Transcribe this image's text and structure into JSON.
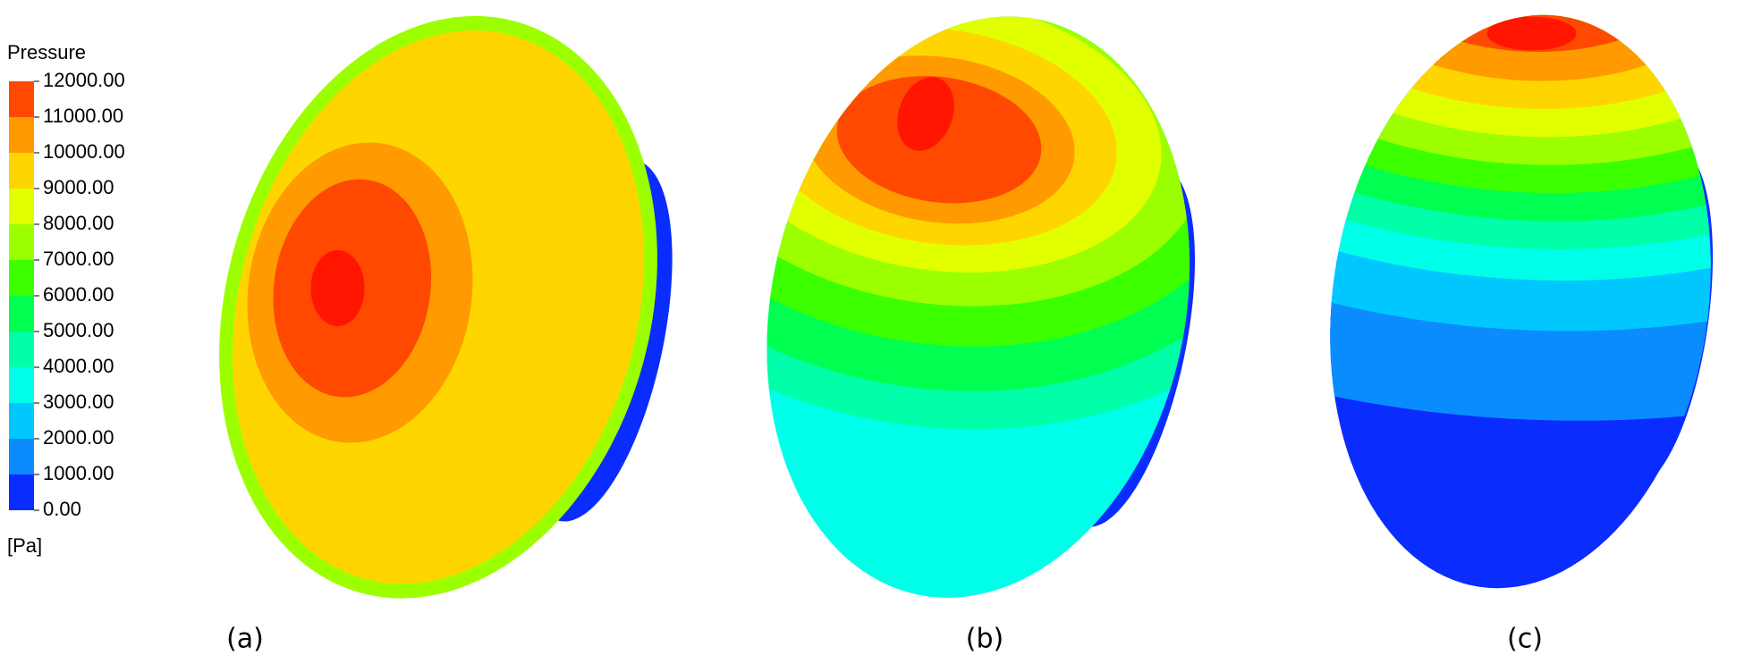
{
  "legend": {
    "title": "Pressure",
    "unit": "[Pa]",
    "ticks": [
      "12000.00",
      "11000.00",
      "10000.00",
      "9000.00",
      "8000.00",
      "7000.00",
      "6000.00",
      "5000.00",
      "4000.00",
      "3000.00",
      "2000.00",
      "1000.00",
      "0.00"
    ],
    "colors": [
      "#ff4800",
      "#ff9a00",
      "#ffd500",
      "#e2ff00",
      "#9cff00",
      "#3cff00",
      "#00ff50",
      "#00ffa8",
      "#00ffe8",
      "#00c8ff",
      "#0a8cff",
      "#0a2cff"
    ]
  },
  "panels": [
    {
      "label": "(a)"
    },
    {
      "label": "(b)"
    },
    {
      "label": "(c)"
    }
  ]
}
